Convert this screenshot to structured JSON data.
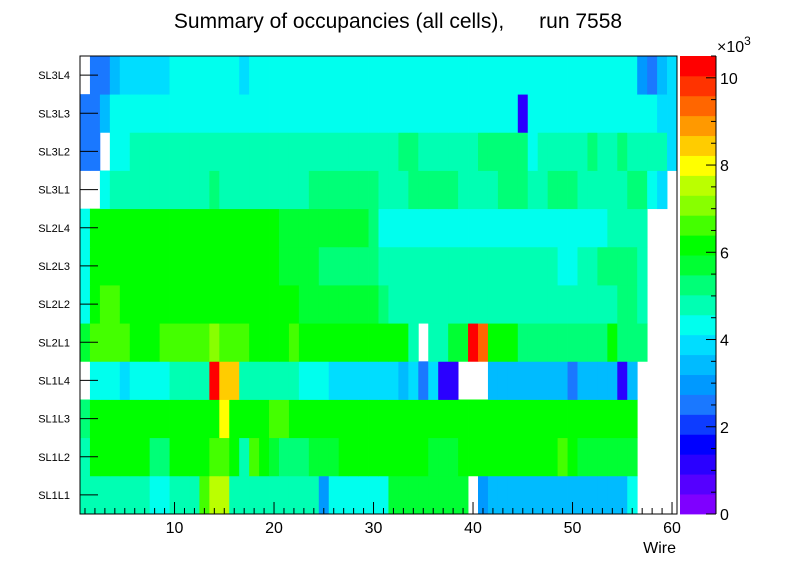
{
  "chart_data": {
    "type": "heatmap",
    "title": "Summary of occupancies (all cells),      run 7558",
    "xlabel": "Wire",
    "ylabel": "",
    "xlim": [
      0.5,
      60.5
    ],
    "x_ticks": [
      10,
      20,
      30,
      40,
      50,
      60
    ],
    "layers": [
      "SL1L1",
      "SL1L2",
      "SL1L3",
      "SL1L4",
      "SL2L1",
      "SL2L2",
      "SL2L3",
      "SL2L4",
      "SL3L1",
      "SL3L2",
      "SL3L3",
      "SL3L4"
    ],
    "color_scale": {
      "min": 0,
      "max": 10500,
      "multiplier": "×10",
      "multiplier_exp": "3",
      "ticks": [
        0,
        2,
        4,
        6,
        8,
        10
      ],
      "palette": [
        "#7f00ff",
        "#5500ff",
        "#2a00ff",
        "#0000ff",
        "#0d3cff",
        "#1a78ff",
        "#0099ff",
        "#00bbff",
        "#00ddff",
        "#00ffee",
        "#00ffb3",
        "#00ff77",
        "#00ff33",
        "#00ff00",
        "#44ff00",
        "#88ff00",
        "#bbff00",
        "#ffff00",
        "#ffcc00",
        "#ff9900",
        "#ff6600",
        "#ff3300",
        "#ff0000"
      ]
    },
    "occupancy": {
      "SL1L1": [
        5000,
        5000,
        5000,
        5000,
        4800,
        4600,
        5000,
        4500,
        4500,
        5000,
        5000,
        5000,
        6500,
        7500,
        7500,
        4800,
        4800,
        4800,
        4800,
        4800,
        4800,
        4800,
        4800,
        4800,
        2800,
        4200,
        4200,
        4200,
        4200,
        4200,
        4200,
        5800,
        5800,
        5800,
        5800,
        5800,
        5800,
        5800,
        5800,
        null,
        2800,
        3300,
        3300,
        3300,
        3300,
        3300,
        3300,
        3300,
        3300,
        3300,
        3300,
        3300,
        3300,
        3300,
        3300,
        4300,
        null,
        null,
        null,
        null
      ],
      "SL1L2": [
        5000,
        6000,
        6000,
        6000,
        6000,
        6000,
        6000,
        5200,
        5200,
        6000,
        6000,
        6000,
        6000,
        6500,
        6500,
        6000,
        5000,
        6500,
        6000,
        5800,
        5300,
        5300,
        5300,
        5800,
        5800,
        5800,
        6300,
        6300,
        6300,
        6300,
        6300,
        6300,
        6300,
        6300,
        6300,
        5800,
        5800,
        5800,
        6300,
        6300,
        6300,
        6300,
        6300,
        6300,
        6300,
        6300,
        6300,
        6300,
        6800,
        6300,
        5800,
        5800,
        5800,
        5800,
        5800,
        5800,
        null,
        null,
        null,
        null
      ],
      "SL1L3": [
        5300,
        6000,
        6000,
        6200,
        6000,
        6000,
        6000,
        6000,
        6000,
        6000,
        6000,
        6000,
        6000,
        6000,
        8000,
        6000,
        6000,
        6000,
        6000,
        6800,
        6800,
        6000,
        6000,
        6000,
        6000,
        6000,
        6000,
        6000,
        6000,
        6000,
        6000,
        6300,
        6300,
        6300,
        6300,
        6300,
        6300,
        6300,
        6300,
        6000,
        6000,
        6000,
        6000,
        6000,
        6000,
        6000,
        6000,
        6000,
        6000,
        6000,
        6000,
        6000,
        6000,
        6000,
        6000,
        6000,
        null,
        null,
        null,
        null
      ],
      "SL1L4": [
        null,
        4200,
        4200,
        4200,
        4000,
        4500,
        4500,
        4500,
        4500,
        5000,
        5000,
        5000,
        5000,
        10500,
        8500,
        8500,
        5000,
        5000,
        5000,
        5000,
        5000,
        5000,
        4300,
        4300,
        4300,
        4000,
        4000,
        4000,
        4000,
        4000,
        4000,
        4000,
        3200,
        4000,
        2700,
        4000,
        1100,
        1100,
        null,
        null,
        null,
        3200,
        3200,
        3200,
        3200,
        3200,
        3200,
        3200,
        3200,
        2700,
        3200,
        3200,
        3200,
        3200,
        1200,
        3200,
        null,
        null,
        null,
        null
      ],
      "SL2L1": [
        5600,
        6800,
        6800,
        6800,
        6800,
        6000,
        6000,
        6000,
        6800,
        6800,
        6800,
        6800,
        6800,
        7000,
        6800,
        6800,
        6800,
        6000,
        6000,
        6000,
        6000,
        6800,
        6000,
        6000,
        6000,
        6000,
        6000,
        6000,
        6000,
        6000,
        6000,
        6000,
        6000,
        5000,
        null,
        5000,
        5000,
        5500,
        5500,
        10500,
        9500,
        6000,
        6000,
        6000,
        5300,
        5300,
        5300,
        5300,
        5300,
        5300,
        5300,
        5300,
        5300,
        6000,
        5300,
        5300,
        5300,
        null,
        null,
        null
      ],
      "SL2L2": [
        4200,
        6000,
        6800,
        6800,
        6000,
        6000,
        6000,
        6000,
        6000,
        6000,
        6000,
        6000,
        6000,
        6000,
        6000,
        6000,
        6000,
        6000,
        6000,
        6000,
        6000,
        6000,
        5600,
        5600,
        5600,
        5600,
        5600,
        5600,
        5600,
        5600,
        5300,
        4700,
        4700,
        4700,
        4700,
        4700,
        4700,
        5000,
        5000,
        5000,
        5000,
        5000,
        5000,
        5000,
        5000,
        4700,
        4700,
        4700,
        4700,
        4700,
        4700,
        4700,
        4700,
        4700,
        5300,
        5300,
        4700,
        null,
        null,
        null
      ],
      "SL2L3": [
        4200,
        6000,
        6000,
        6000,
        6000,
        6000,
        6000,
        6300,
        6300,
        6300,
        6300,
        6300,
        6000,
        6000,
        6000,
        6000,
        6000,
        6000,
        6000,
        6000,
        5600,
        5600,
        5600,
        5600,
        5300,
        5300,
        5300,
        5300,
        5300,
        5300,
        4700,
        4700,
        4700,
        4700,
        4700,
        4700,
        4700,
        4700,
        4700,
        4700,
        4700,
        4700,
        4700,
        4700,
        4700,
        4700,
        5000,
        5000,
        4200,
        4200,
        5000,
        5000,
        5300,
        5300,
        5300,
        5300,
        4700,
        null,
        null,
        null
      ],
      "SL2L4": [
        4200,
        6000,
        6000,
        6300,
        6000,
        6000,
        6300,
        6300,
        6300,
        6300,
        6300,
        6300,
        6300,
        6300,
        6300,
        6300,
        6300,
        6300,
        6300,
        6300,
        5600,
        5600,
        5600,
        5600,
        5600,
        5600,
        5600,
        5600,
        5600,
        5300,
        4500,
        4500,
        4500,
        4500,
        4500,
        4500,
        4500,
        4500,
        4500,
        4500,
        4500,
        4500,
        4500,
        4500,
        4500,
        4500,
        4500,
        4500,
        4500,
        4200,
        4200,
        4200,
        4200,
        5000,
        5000,
        4700,
        5000,
        null,
        null,
        null
      ],
      "SL3L1": [
        null,
        null,
        4300,
        4600,
        4600,
        4600,
        4600,
        4600,
        4600,
        4600,
        4600,
        4600,
        4600,
        5300,
        4600,
        4600,
        5000,
        5000,
        5000,
        5000,
        5000,
        5000,
        5000,
        5300,
        5300,
        5300,
        5300,
        5300,
        5300,
        5300,
        5000,
        5000,
        5000,
        5300,
        5300,
        5300,
        5300,
        5300,
        5000,
        5000,
        5000,
        5000,
        5300,
        5300,
        5300,
        5000,
        5000,
        5300,
        5300,
        5300,
        5000,
        5000,
        5000,
        5000,
        5000,
        5300,
        5300,
        4300,
        3700,
        null
      ],
      "SL3L2": [
        2500,
        2500,
        null,
        4200,
        4200,
        4600,
        4600,
        4600,
        4600,
        4600,
        4600,
        4600,
        4600,
        4600,
        4600,
        4600,
        4600,
        4800,
        4800,
        4800,
        4800,
        4800,
        4800,
        4800,
        4800,
        4600,
        4600,
        4600,
        5000,
        4800,
        4600,
        4600,
        5200,
        5200,
        4800,
        4800,
        4800,
        4600,
        4600,
        4600,
        5200,
        5200,
        5200,
        5200,
        5200,
        4300,
        5000,
        4600,
        4600,
        4600,
        4600,
        5200,
        4600,
        4600,
        5200,
        4600,
        4600,
        4600,
        4600,
        3800
      ],
      "SL3L3": [
        2500,
        2500,
        3600,
        4200,
        4200,
        4300,
        4300,
        4300,
        4300,
        4300,
        4300,
        4300,
        4300,
        4300,
        4300,
        4300,
        4300,
        4300,
        4300,
        4300,
        4300,
        4300,
        4300,
        4300,
        4300,
        4300,
        4300,
        4300,
        4300,
        4300,
        4300,
        4300,
        4300,
        4300,
        4300,
        4300,
        4300,
        4300,
        4300,
        4300,
        4300,
        4300,
        4300,
        4300,
        1100,
        4300,
        4300,
        4300,
        4300,
        4300,
        4300,
        4300,
        4300,
        4300,
        4300,
        4300,
        4300,
        4300,
        3800,
        3800
      ],
      "SL3L4": [
        null,
        2500,
        2500,
        3300,
        3900,
        3900,
        3900,
        3900,
        3900,
        4300,
        4300,
        4300,
        4300,
        4300,
        4300,
        4300,
        3900,
        4300,
        4300,
        4300,
        4300,
        4300,
        4300,
        4300,
        4300,
        4300,
        4300,
        4300,
        4300,
        4300,
        4300,
        4300,
        4300,
        4300,
        4300,
        4300,
        4300,
        4300,
        4300,
        4300,
        4300,
        4300,
        4300,
        4300,
        4300,
        4300,
        4300,
        4300,
        4300,
        4300,
        4300,
        4300,
        4300,
        4300,
        4300,
        4300,
        3100,
        2500,
        3500,
        3800
      ]
    }
  }
}
